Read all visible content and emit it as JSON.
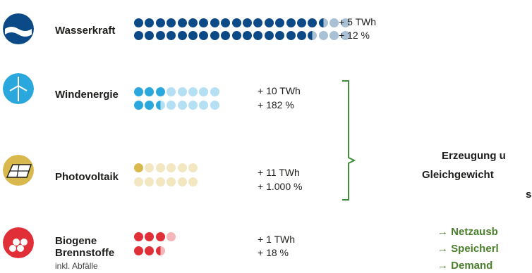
{
  "colors": {
    "water": "#0b4a86",
    "wind": "#2aa7dc",
    "pv": "#d9b94d",
    "bio": "#e02f37",
    "bracket": "#3f8f3a",
    "green_text": "#4a7f2c"
  },
  "rows": [
    {
      "name": "Wasserkraft",
      "icon": "water-wave-icon",
      "stat1": "+ 5 TWh",
      "stat2": "+ 12 %",
      "row1": {
        "full": 17,
        "partial": 1,
        "faded": 2
      },
      "row2": {
        "full": 16,
        "partial": 1,
        "faded": 3
      }
    },
    {
      "name": "Windenergie",
      "icon": "wind-turbine-icon",
      "stat1": "+ 10 TWh",
      "stat2": "+ 182 %",
      "row1": {
        "full": 3,
        "partial": 0,
        "faded": 5
      },
      "row2": {
        "full": 2,
        "partial": 1,
        "faded": 5
      }
    },
    {
      "name": "Photovoltaik",
      "icon": "solar-panel-icon",
      "stat1": "+ 11 TWh",
      "stat2": "+ 1.000 %",
      "row1": {
        "full": 1,
        "partial": 0,
        "faded": 5
      },
      "row2": {
        "full": 0,
        "partial": 0,
        "faded": 6
      }
    },
    {
      "name1": "Biogene",
      "name2": "Brennstoffe",
      "sub": "inkl. Abfälle",
      "icon": "biomass-logs-icon",
      "stat1": "+ 1 TWh",
      "stat2": "+ 18 %",
      "row1": {
        "full": 3,
        "partial": 0,
        "faded": 1
      },
      "row2": {
        "full": 2,
        "partial": 1,
        "faded": 0
      }
    }
  ],
  "note": {
    "line1": "Erzeugung u",
    "line2": "Gleichgewicht",
    "line3": "s"
  },
  "arrows": [
    "→ Netzausb",
    "→ Speicherl",
    "→ Demand"
  ]
}
